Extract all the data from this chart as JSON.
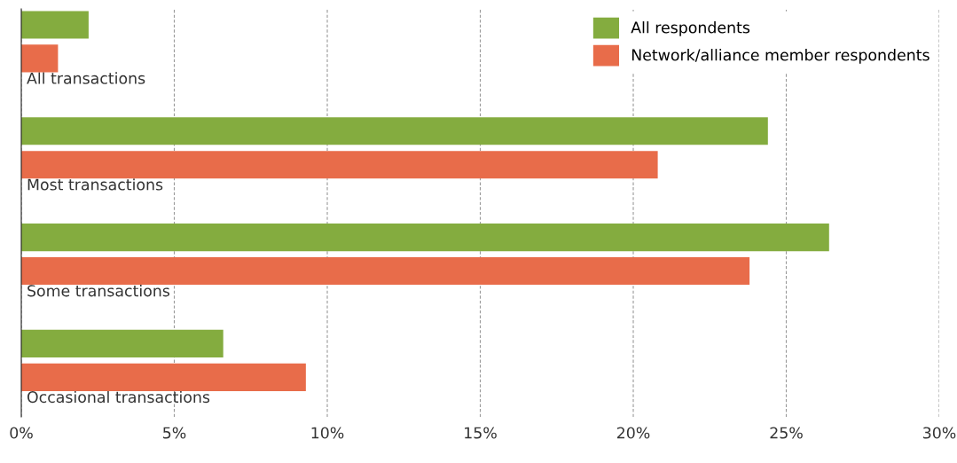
{
  "chart_data": {
    "type": "bar",
    "orientation": "horizontal",
    "categories": [
      "All transactions",
      "Most transactions",
      "Some transactions",
      "Occasional transactions"
    ],
    "series": [
      {
        "name": "All respondents",
        "color": "#84ac3f",
        "values": [
          2.2,
          24.4,
          26.4,
          6.6
        ]
      },
      {
        "name": "Network/alliance member respondents",
        "color": "#e86c4a",
        "values": [
          1.2,
          20.8,
          23.8,
          9.3
        ]
      }
    ],
    "xlim": [
      0,
      30
    ],
    "xticks": [
      {
        "value": 0,
        "label": "0%"
      },
      {
        "value": 5,
        "label": "5%"
      },
      {
        "value": 10,
        "label": "10%"
      },
      {
        "value": 15,
        "label": "15%"
      },
      {
        "value": 20,
        "label": "20%"
      },
      {
        "value": 25,
        "label": "25%"
      },
      {
        "value": 30,
        "label": "30%"
      }
    ],
    "grid": "x",
    "legend": "top right"
  }
}
